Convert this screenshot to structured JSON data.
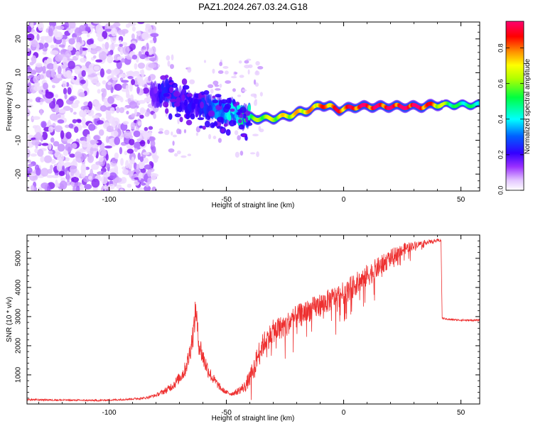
{
  "title": "PAZ1.2024.267.03.24.G18",
  "chart_data": [
    {
      "type": "heatmap",
      "xlabel": "Height of straight line (km)",
      "ylabel": "Frequency (Hz)",
      "xlim": [
        -135,
        58
      ],
      "ylim": [
        -25,
        25
      ],
      "x_ticks": [
        -100,
        -50,
        0,
        50
      ],
      "x_tick_labels": [
        "-100",
        "-50",
        "0",
        "50"
      ],
      "y_ticks": [
        -20,
        -10,
        0,
        10,
        20
      ],
      "y_tick_labels": [
        "-20",
        "-10",
        "0",
        "10",
        "20"
      ],
      "colorbar": {
        "label": "Normalized spectral amplitude",
        "range": [
          0,
          0.95
        ],
        "ticks": [
          0.0,
          0.2,
          0.4,
          0.6,
          0.8
        ],
        "tick_labels": [
          "0.0",
          "0.2",
          "0.4",
          "0.6",
          "0.8"
        ],
        "colors": [
          "#ffffff",
          "#d9a8ff",
          "#7a00ff",
          "#0000ff",
          "#00ffff",
          "#00ff00",
          "#ffff00",
          "#ff8000",
          "#ff0000",
          "#ff0080"
        ]
      },
      "signal_trace": {
        "x": [
          -82,
          -78,
          -74,
          -70,
          -66,
          -62,
          -58,
          -54,
          -50,
          -46,
          -42,
          -38,
          -34,
          -30,
          -26,
          -22,
          -18,
          -14,
          -10,
          -6,
          -2,
          2,
          6,
          10,
          14,
          18,
          22,
          26,
          30,
          34,
          38,
          42,
          46,
          50,
          54,
          58
        ],
        "freq": [
          3,
          4,
          4,
          2,
          1,
          0,
          0.5,
          -1,
          -1.5,
          -2,
          -3,
          -3.5,
          -3.5,
          -3.5,
          -3,
          -2.5,
          -1.5,
          -1,
          0.5,
          0,
          -1,
          -0.5,
          0,
          0,
          0,
          0,
          0,
          0,
          0,
          0,
          0.5,
          0.5,
          0.5,
          0.5,
          0.5,
          0.5
        ],
        "amplitude": [
          0.15,
          0.2,
          0.25,
          0.2,
          0.2,
          0.2,
          0.25,
          0.3,
          0.35,
          0.4,
          0.45,
          0.55,
          0.6,
          0.6,
          0.65,
          0.65,
          0.7,
          0.7,
          0.75,
          0.75,
          0.8,
          0.8,
          0.85,
          0.85,
          0.85,
          0.85,
          0.85,
          0.9,
          0.9,
          0.85,
          0.75,
          0.6,
          0.5,
          0.45,
          0.45,
          0.45
        ]
      }
    },
    {
      "type": "line",
      "xlabel": "Height of straight line (km)",
      "ylabel": "SNR (10 * v/v)",
      "xlim": [
        -135,
        58
      ],
      "ylim": [
        0,
        5800
      ],
      "x_ticks": [
        -100,
        -50,
        0,
        50
      ],
      "x_tick_labels": [
        "-100",
        "-50",
        "0",
        "50"
      ],
      "y_ticks": [
        1000,
        2000,
        3000,
        4000,
        5000
      ],
      "y_tick_labels": [
        "1000",
        "2000",
        "3000",
        "4000",
        "5000"
      ],
      "color": "#ee3030",
      "series": [
        {
          "x": [
            -135,
            -125,
            -115,
            -105,
            -95,
            -85,
            -80,
            -75,
            -72,
            -70,
            -68,
            -66,
            -64,
            -63,
            -62,
            -60,
            -58,
            -56,
            -54,
            -52,
            -50,
            -48,
            -46,
            -44,
            -42,
            -40,
            -38,
            -36,
            -34,
            -32,
            -30,
            -25,
            -20,
            -15,
            -10,
            -5,
            0,
            5,
            10,
            15,
            20,
            25,
            30,
            35,
            40,
            41.5,
            42,
            45,
            50,
            55,
            58
          ],
          "y": [
            150,
            140,
            130,
            120,
            150,
            200,
            300,
            500,
            700,
            900,
            1100,
            1600,
            2500,
            3300,
            2200,
            1600,
            1200,
            900,
            700,
            500,
            400,
            350,
            400,
            500,
            600,
            900,
            1300,
            1800,
            2100,
            2300,
            2500,
            2700,
            3000,
            3200,
            3400,
            3600,
            3800,
            4100,
            4400,
            4700,
            5000,
            5300,
            5450,
            5550,
            5600,
            5620,
            2950,
            2900,
            2880,
            2870,
            2880
          ],
          "noise": [
            60,
            60,
            60,
            60,
            60,
            80,
            120,
            250,
            350,
            400,
            500,
            700,
            900,
            1000,
            900,
            700,
            550,
            400,
            300,
            200,
            150,
            150,
            200,
            300,
            400,
            600,
            700,
            800,
            800,
            800,
            800,
            800,
            800,
            800,
            800,
            800,
            800,
            800,
            800,
            700,
            600,
            450,
            250,
            150,
            120,
            100,
            60,
            60,
            60,
            60,
            60
          ]
        }
      ]
    }
  ]
}
